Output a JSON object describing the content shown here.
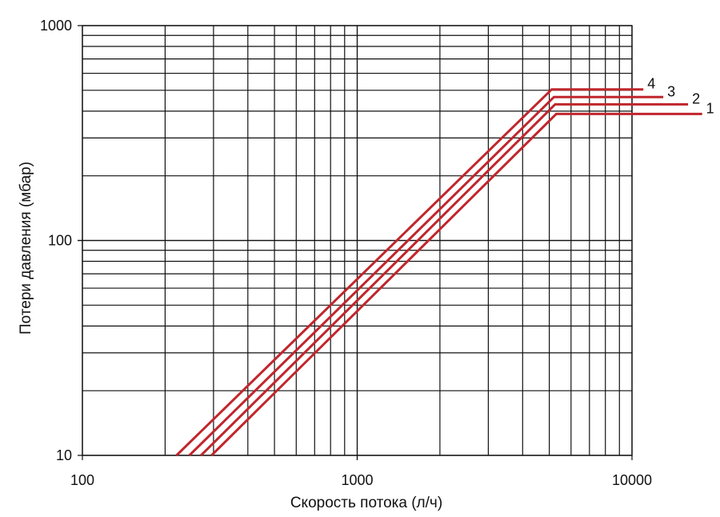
{
  "chart_data": {
    "type": "line",
    "xlabel": "Скорость потока (л/ч)",
    "ylabel": "Потери давления (мбар)",
    "xscale": "log",
    "yscale": "log",
    "xlim": [
      100,
      10000
    ],
    "ylim": [
      10,
      1000
    ],
    "grid": true,
    "x_ticks": [
      {
        "value": 100,
        "label": "100"
      },
      {
        "value": 1000,
        "label": "1000"
      },
      {
        "value": 10000,
        "label": "10000"
      }
    ],
    "y_ticks": [
      {
        "value": 10,
        "label": "10"
      },
      {
        "value": 100,
        "label": "100"
      },
      {
        "value": 1000,
        "label": "1000"
      }
    ],
    "series": [
      {
        "name": "1",
        "color": "#c0262c",
        "points": [
          [
            295,
            10
          ],
          [
            5300,
            388
          ],
          [
            18000,
            388
          ]
        ]
      },
      {
        "name": "2",
        "color": "#c0262c",
        "points": [
          [
            270,
            10
          ],
          [
            5250,
            430
          ],
          [
            16000,
            430
          ]
        ]
      },
      {
        "name": "3",
        "color": "#c0262c",
        "points": [
          [
            245,
            10
          ],
          [
            5200,
            465
          ],
          [
            13000,
            465
          ]
        ]
      },
      {
        "name": "4",
        "color": "#c0262c",
        "points": [
          [
            220,
            10
          ],
          [
            5100,
            505
          ],
          [
            11000,
            505
          ]
        ]
      }
    ]
  }
}
